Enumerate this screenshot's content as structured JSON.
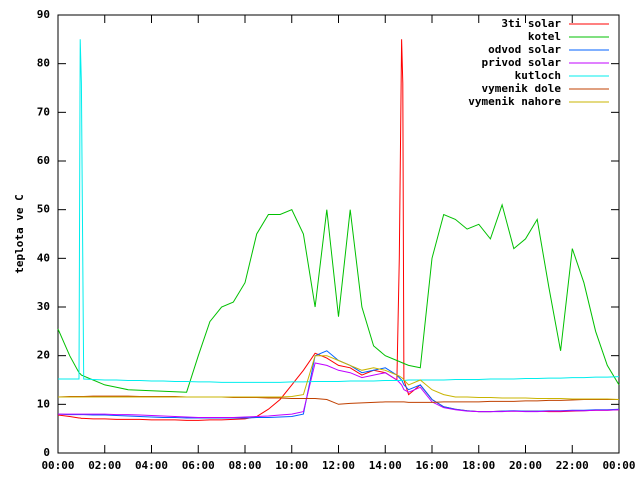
{
  "chart_data": {
    "type": "line",
    "y_label": "teplota ve C",
    "x": [
      0,
      0.5,
      0.9,
      0.95,
      1,
      1.1,
      1.5,
      2,
      2.5,
      3,
      3.5,
      4,
      4.5,
      5,
      5.5,
      6,
      6.5,
      7,
      7.5,
      8,
      8.5,
      9,
      9.5,
      10,
      10.5,
      11,
      11.5,
      12,
      12.5,
      13,
      13.5,
      14,
      14.5,
      14.6,
      14.7,
      14.75,
      14.8,
      15,
      15.5,
      16,
      16.5,
      17,
      17.5,
      18,
      18.5,
      19,
      19.5,
      20,
      20.5,
      21,
      21.5,
      22,
      22.5,
      23,
      23.5,
      24
    ],
    "xlim": [
      0,
      24
    ],
    "xticks": [
      {
        "value": 0,
        "label": "00:00"
      },
      {
        "value": 2,
        "label": "02:00"
      },
      {
        "value": 4,
        "label": "04:00"
      },
      {
        "value": 6,
        "label": "06:00"
      },
      {
        "value": 8,
        "label": "08:00"
      },
      {
        "value": 10,
        "label": "10:00"
      },
      {
        "value": 12,
        "label": "12:00"
      },
      {
        "value": 14,
        "label": "14:00"
      },
      {
        "value": 16,
        "label": "16:00"
      },
      {
        "value": 18,
        "label": "18:00"
      },
      {
        "value": 20,
        "label": "20:00"
      },
      {
        "value": 22,
        "label": "22:00"
      },
      {
        "value": 24,
        "label": "00:00"
      }
    ],
    "ylim": [
      0,
      90
    ],
    "yticks": [
      0,
      10,
      20,
      30,
      40,
      50,
      60,
      70,
      80,
      90
    ],
    "legend": "top-right",
    "series": [
      {
        "name": "3ti solar",
        "color": "#ff0000",
        "values": [
          7.8,
          7.5,
          7.2,
          7.2,
          7.1,
          7.1,
          7,
          7,
          6.9,
          6.9,
          6.9,
          6.8,
          6.8,
          6.8,
          6.7,
          6.7,
          6.8,
          6.8,
          6.9,
          7,
          7.5,
          9,
          11,
          14,
          17,
          20.5,
          19.5,
          18,
          17.5,
          16,
          17,
          16.5,
          15,
          40,
          85,
          76,
          15,
          12,
          14,
          11,
          9.5,
          9,
          8.7,
          8.5,
          8.5,
          8.6,
          8.6,
          8.6,
          8.6,
          8.5,
          8.5,
          8.6,
          8.7,
          8.8,
          8.8,
          8.9
        ]
      },
      {
        "name": "kotel",
        "color": "#00c000",
        "values": [
          25.5,
          20,
          16.5,
          16.3,
          16,
          15.8,
          15,
          14,
          13.5,
          13,
          12.9,
          12.8,
          12.7,
          12.6,
          12.5,
          20,
          27,
          30,
          31,
          35,
          45,
          49,
          49,
          50,
          45,
          30,
          50,
          28,
          50,
          30,
          22,
          20,
          19,
          18.8,
          18.6,
          18.5,
          18.4,
          18,
          17.5,
          40,
          49,
          48,
          46,
          47,
          44,
          51,
          42,
          44,
          48,
          34,
          21,
          42,
          35,
          25,
          18,
          14
        ]
      },
      {
        "name": "odvod solar",
        "color": "#0060ff",
        "values": [
          8,
          7.9,
          7.9,
          7.9,
          7.9,
          7.9,
          7.8,
          7.8,
          7.7,
          7.6,
          7.5,
          7.4,
          7.3,
          7.3,
          7.2,
          7.2,
          7.2,
          7.2,
          7.2,
          7.2,
          7.3,
          7.3,
          7.4,
          7.5,
          8,
          20,
          21,
          19,
          18,
          16.5,
          17,
          17.5,
          16,
          15.5,
          15,
          14.5,
          14,
          13,
          14,
          11,
          9.5,
          9,
          8.7,
          8.5,
          8.5,
          8.6,
          8.7,
          8.6,
          8.6,
          8.7,
          8.7,
          8.8,
          8.8,
          8.9,
          8.9,
          9
        ]
      },
      {
        "name": "privod solar",
        "color": "#c000ff",
        "values": [
          8,
          8,
          8,
          8,
          8,
          8,
          8,
          8,
          7.9,
          7.9,
          7.8,
          7.7,
          7.6,
          7.5,
          7.4,
          7.3,
          7.3,
          7.3,
          7.3,
          7.4,
          7.5,
          7.6,
          7.8,
          8,
          8.5,
          18.5,
          18,
          17,
          16.5,
          15.5,
          16,
          16.5,
          15,
          14.5,
          14,
          13.5,
          13,
          12.5,
          13.5,
          10.5,
          9.3,
          8.9,
          8.6,
          8.5,
          8.5,
          8.5,
          8.6,
          8.5,
          8.5,
          8.6,
          8.6,
          8.7,
          8.7,
          8.8,
          8.8,
          8.9
        ]
      },
      {
        "name": "kutloch",
        "color": "#00eeee",
        "values": [
          15.2,
          15.2,
          15.2,
          85,
          76,
          15.2,
          15.1,
          15,
          15,
          14.9,
          14.9,
          14.8,
          14.8,
          14.7,
          14.7,
          14.6,
          14.6,
          14.5,
          14.5,
          14.5,
          14.5,
          14.5,
          14.5,
          14.6,
          14.6,
          14.7,
          14.7,
          14.7,
          14.8,
          14.8,
          14.8,
          14.9,
          14.9,
          14.9,
          14.9,
          14.9,
          14.9,
          15,
          15,
          15,
          15,
          15.1,
          15.1,
          15.1,
          15.2,
          15.2,
          15.2,
          15.3,
          15.3,
          15.4,
          15.4,
          15.5,
          15.5,
          15.6,
          15.6,
          15.7
        ]
      },
      {
        "name": "vymenik dole",
        "color": "#c04000",
        "values": [
          11.5,
          11.6,
          11.6,
          11.6,
          11.6,
          11.6,
          11.7,
          11.7,
          11.7,
          11.7,
          11.6,
          11.6,
          11.6,
          11.6,
          11.5,
          11.5,
          11.5,
          11.5,
          11.4,
          11.4,
          11.4,
          11.3,
          11.3,
          11.2,
          11.2,
          11.2,
          11,
          10,
          10.2,
          10.3,
          10.4,
          10.5,
          10.5,
          10.5,
          10.5,
          10.5,
          10.5,
          10.4,
          10.4,
          10.4,
          10.5,
          10.5,
          10.5,
          10.5,
          10.6,
          10.6,
          10.6,
          10.7,
          10.7,
          10.8,
          10.8,
          10.9,
          11,
          11,
          11,
          11
        ]
      },
      {
        "name": "vymenik nahore",
        "color": "#c8b400",
        "values": [
          11.5,
          11.5,
          11.5,
          11.5,
          11.5,
          11.5,
          11.5,
          11.5,
          11.5,
          11.5,
          11.5,
          11.5,
          11.5,
          11.5,
          11.5,
          11.5,
          11.5,
          11.5,
          11.5,
          11.5,
          11.5,
          11.5,
          11.5,
          11.6,
          12,
          20,
          20,
          19,
          18,
          17,
          17.5,
          17,
          16,
          15.8,
          15.5,
          15.3,
          15,
          14,
          15,
          13,
          12,
          11.5,
          11.5,
          11.4,
          11.4,
          11.3,
          11.3,
          11.3,
          11.2,
          11.2,
          11.2,
          11.1,
          11.1,
          11.1,
          11.1,
          11
        ]
      }
    ]
  }
}
